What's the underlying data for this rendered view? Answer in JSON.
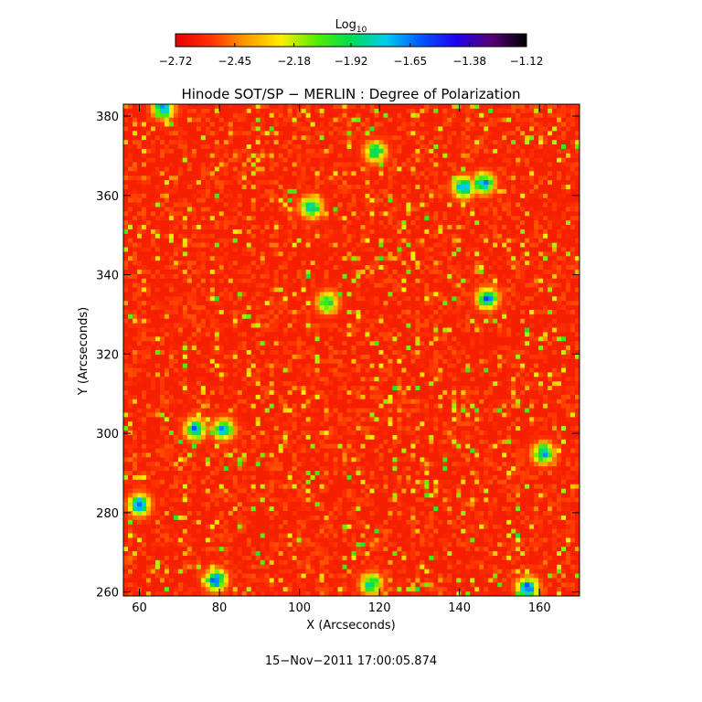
{
  "chart_data": {
    "type": "heatmap",
    "title": "Hinode SOT/SP − MERLIN : Degree of Polarization",
    "xlabel": "X (Arcseconds)",
    "ylabel": "Y (Arcseconds)",
    "xlim": [
      56,
      170
    ],
    "ylim": [
      259,
      383
    ],
    "x_ticks": [
      60,
      80,
      100,
      120,
      140,
      160
    ],
    "x_tick_labels": [
      "60",
      "80",
      "100",
      "120",
      "140",
      "160"
    ],
    "y_ticks": [
      260,
      280,
      300,
      320,
      340,
      360,
      380
    ],
    "y_tick_labels": [
      "260",
      "280",
      "300",
      "320",
      "340",
      "360",
      "380"
    ],
    "colorbar": {
      "label_base": "Log",
      "label_sub": "10",
      "range": [
        -2.72,
        -1.12
      ],
      "ticks": [
        -2.72,
        -2.45,
        -2.18,
        -1.92,
        -1.65,
        -1.38,
        -1.12
      ],
      "tick_labels": [
        "−2.72",
        "−2.45",
        "−2.18",
        "−1.92",
        "−1.65",
        "−1.38",
        "−1.12"
      ],
      "colormap": [
        "#e60000",
        "#ff3300",
        "#ff9900",
        "#ffee00",
        "#55ee00",
        "#00dd55",
        "#00ccee",
        "#0055ff",
        "#2200ee",
        "#550077",
        "#000000"
      ]
    },
    "background_level": -2.62,
    "high_polarization_regions": [
      {
        "x": 66,
        "y": 382,
        "level": -1.5
      },
      {
        "x": 103,
        "y": 357,
        "level": -1.55
      },
      {
        "x": 119,
        "y": 371,
        "level": -1.7
      },
      {
        "x": 141,
        "y": 362,
        "level": -1.45
      },
      {
        "x": 146,
        "y": 363,
        "level": -1.5
      },
      {
        "x": 107,
        "y": 333,
        "level": -1.75
      },
      {
        "x": 147,
        "y": 334,
        "level": -1.5
      },
      {
        "x": 74,
        "y": 301,
        "level": -1.55
      },
      {
        "x": 81,
        "y": 301,
        "level": -1.6
      },
      {
        "x": 161,
        "y": 295,
        "level": -1.6
      },
      {
        "x": 60,
        "y": 282,
        "level": -1.5
      },
      {
        "x": 79,
        "y": 263,
        "level": -1.4
      },
      {
        "x": 118,
        "y": 262,
        "level": -1.65
      },
      {
        "x": 157,
        "y": 261,
        "level": -1.45
      }
    ],
    "grid": false
  },
  "footer": {
    "timestamp": "15−Nov−2011 17:00:05.874"
  }
}
